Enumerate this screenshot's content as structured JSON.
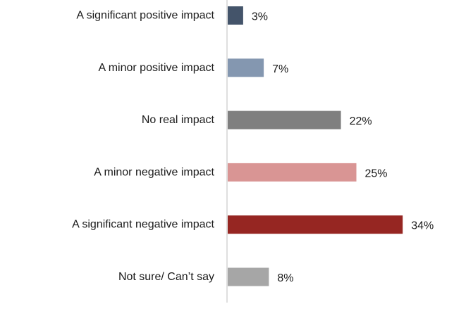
{
  "chart_data": {
    "type": "bar",
    "orientation": "horizontal",
    "categories": [
      "A significant positive impact",
      "A minor positive impact",
      "No real impact",
      "A minor negative impact",
      "A significant negative impact",
      "Not sure/ Can’t say"
    ],
    "values": [
      3,
      7,
      22,
      25,
      34,
      8
    ],
    "value_labels": [
      "3%",
      "7%",
      "22%",
      "25%",
      "34%",
      "8%"
    ],
    "colors": [
      "#44546a",
      "#8497b0",
      "#7f7f7f",
      "#d99594",
      "#962622",
      "#a6a6a6"
    ],
    "axis_color": "#bfbfbf",
    "xlim": [
      0,
      34
    ],
    "grid": false,
    "legend": "none",
    "title": "",
    "xlabel": "",
    "ylabel": ""
  }
}
